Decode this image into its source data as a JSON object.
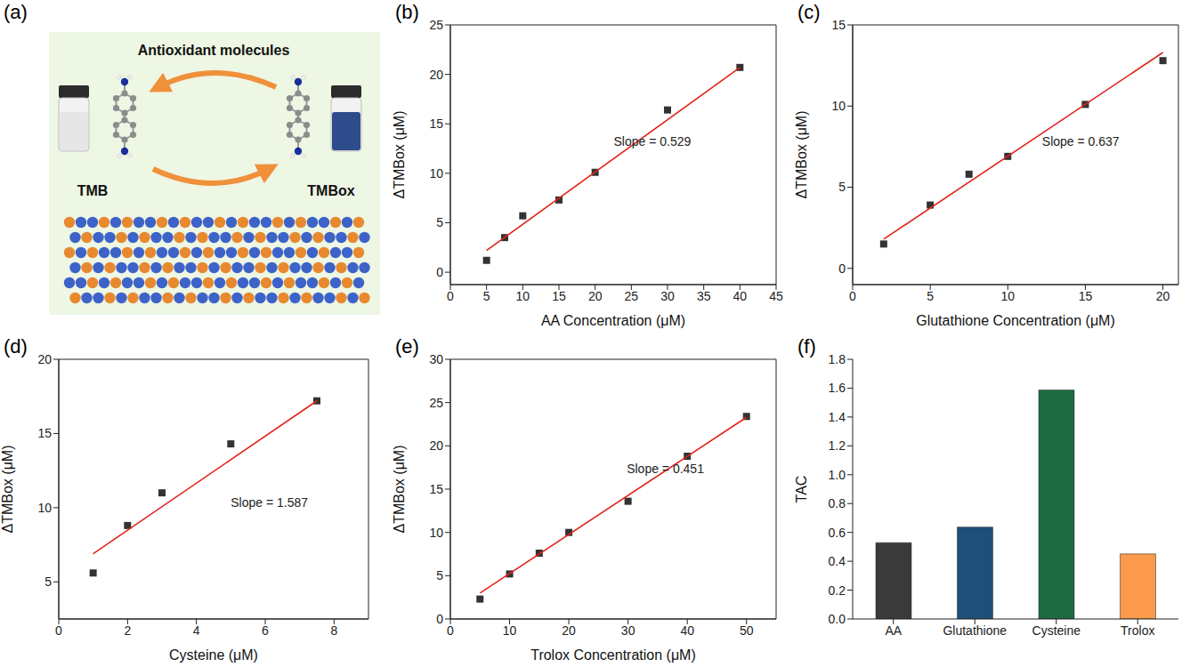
{
  "diagram": {
    "panel": "(a)",
    "title": "Antioxidant molecules",
    "left_label": "TMB",
    "right_label": "TMBox"
  },
  "chart_data": [
    {
      "panel": "(b)",
      "type": "scatter",
      "xlabel": "AA Concentration (μM)",
      "ylabel": "ΔTMBox (μM)",
      "annotation": "Slope = 0.529",
      "xlim": [
        0,
        45
      ],
      "xticks": [
        0,
        5,
        10,
        15,
        20,
        25,
        30,
        35,
        40,
        45
      ],
      "ylim": [
        -1.25,
        25
      ],
      "yticks": [
        0,
        5,
        10,
        15,
        20,
        25
      ],
      "series": [
        {
          "type": "scatter",
          "marker": "square",
          "color": "#333333",
          "x": [
            5,
            7.5,
            10,
            15,
            20,
            30,
            40
          ],
          "values": [
            1.2,
            3.5,
            5.7,
            7.3,
            10.1,
            16.4,
            20.7
          ]
        },
        {
          "type": "line",
          "color": "#e2231a",
          "x": [
            5,
            40
          ],
          "values": [
            2.2,
            20.7
          ]
        }
      ]
    },
    {
      "panel": "(c)",
      "type": "scatter",
      "xlabel": "Glutathione Concentration (μM)",
      "ylabel": "ΔTMBox (μM)",
      "annotation": "Slope = 0.637",
      "xlim": [
        0,
        21
      ],
      "xticks": [
        0,
        5,
        10,
        15,
        20
      ],
      "ylim": [
        -1,
        15
      ],
      "yticks": [
        0,
        5,
        10,
        15
      ],
      "series": [
        {
          "type": "scatter",
          "marker": "square",
          "color": "#333333",
          "x": [
            2,
            5,
            7.5,
            10,
            15,
            20
          ],
          "values": [
            1.5,
            3.9,
            5.8,
            6.9,
            10.1,
            12.8
          ]
        },
        {
          "type": "line",
          "color": "#e2231a",
          "x": [
            2,
            20
          ],
          "values": [
            1.8,
            13.3
          ]
        }
      ]
    },
    {
      "panel": "(d)",
      "type": "scatter",
      "xlabel": "Cysteine (μM)",
      "ylabel": "ΔTMBox (μM)",
      "annotation": "Slope = 1.587",
      "xlim": [
        0,
        9
      ],
      "xticks": [
        0,
        2,
        4,
        6,
        8
      ],
      "ylim": [
        2.5,
        20
      ],
      "yticks": [
        5,
        10,
        15,
        20
      ],
      "series": [
        {
          "type": "scatter",
          "marker": "square",
          "color": "#333333",
          "x": [
            1,
            2,
            3,
            5,
            7.5
          ],
          "values": [
            5.6,
            8.8,
            11,
            14.3,
            17.2
          ]
        },
        {
          "type": "line",
          "color": "#e2231a",
          "x": [
            1,
            7.5
          ],
          "values": [
            6.9,
            17.2
          ]
        }
      ]
    },
    {
      "panel": "(e)",
      "type": "scatter",
      "xlabel": "Trolox Concentration (μM)",
      "ylabel": "ΔTMBox (μM)",
      "annotation": "Slope = 0.451",
      "xlim": [
        0,
        55
      ],
      "xticks": [
        0,
        10,
        20,
        30,
        40,
        50
      ],
      "ylim": [
        0,
        30
      ],
      "yticks": [
        0,
        5,
        10,
        15,
        20,
        25,
        30
      ],
      "series": [
        {
          "type": "scatter",
          "marker": "square",
          "color": "#333333",
          "x": [
            5,
            10,
            15,
            20,
            30,
            40,
            50
          ],
          "values": [
            2.3,
            5.2,
            7.6,
            10,
            13.6,
            18.8,
            23.4
          ]
        },
        {
          "type": "line",
          "color": "#e2231a",
          "x": [
            5,
            50
          ],
          "values": [
            3.0,
            23.3
          ]
        }
      ]
    },
    {
      "panel": "(f)",
      "type": "bar",
      "ylabel": "TAC",
      "categories": [
        "AA",
        "Glutathione",
        "Cysteine",
        "Trolox"
      ],
      "values": [
        0.529,
        0.637,
        1.587,
        0.451
      ],
      "colors": [
        "#3a3a3a",
        "#1f4e79",
        "#1e6b42",
        "#fb9a4b"
      ],
      "ylim": [
        0,
        1.8
      ],
      "yticks": [
        {
          "value": 0,
          "label": "0.0"
        },
        0.2,
        0.4,
        0.6,
        0.8,
        {
          "value": 1,
          "label": "1.0"
        },
        1.2,
        1.4,
        1.6,
        1.8
      ]
    }
  ]
}
